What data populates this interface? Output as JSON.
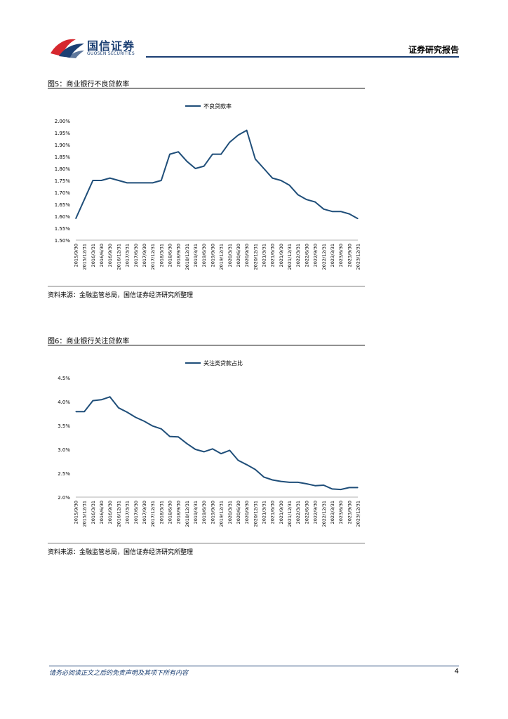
{
  "header": {
    "logo_cn": "国信证券",
    "logo_en": "GUOSEN SECURITIES",
    "report_type": "证券研究报告"
  },
  "brand_colors": {
    "primary": "#1b3f73",
    "logo_red": "#d6272e",
    "series": "#1f4e79"
  },
  "figures": [
    {
      "title": "图5：商业银行不良贷款率",
      "source": "资料来源：金融监管总局，国信证券经济研究所整理"
    },
    {
      "title": "图6：商业银行关注贷款率",
      "source": "资料来源：金融监管总局，国信证券经济研究所整理"
    }
  ],
  "chart_data": [
    {
      "type": "line",
      "categories": [
        "2015/9/30",
        "2015/12/31",
        "2016/3/31",
        "2016/6/30",
        "2016/9/30",
        "2016/12/31",
        "2017/3/31",
        "2017/6/30",
        "2017/9/30",
        "2017/12/31",
        "2018/3/31",
        "2018/6/30",
        "2018/9/30",
        "2018/12/31",
        "2019/3/31",
        "2019/6/30",
        "2019/9/30",
        "2019/12/31",
        "2020/3/31",
        "2020/6/30",
        "2020/9/30",
        "2020/12/31",
        "2021/3/31",
        "2021/6/30",
        "2021/9/30",
        "2021/12/31",
        "2022/3/31",
        "2022/6/30",
        "2022/9/30",
        "2022/12/31",
        "2023/3/31",
        "2023/6/30",
        "2023/9/30",
        "2023/12/31"
      ],
      "series": [
        {
          "name": "不良贷款率",
          "values": [
            1.59,
            1.67,
            1.75,
            1.75,
            1.76,
            1.75,
            1.74,
            1.74,
            1.74,
            1.74,
            1.75,
            1.86,
            1.87,
            1.83,
            1.8,
            1.81,
            1.86,
            1.86,
            1.91,
            1.94,
            1.96,
            1.84,
            1.8,
            1.76,
            1.75,
            1.73,
            1.69,
            1.67,
            1.66,
            1.63,
            1.62,
            1.62,
            1.61,
            1.59
          ]
        }
      ],
      "ylim": [
        1.5,
        2.0
      ],
      "yticks": [
        "1.50%",
        "1.55%",
        "1.60%",
        "1.65%",
        "1.70%",
        "1.75%",
        "1.80%",
        "1.85%",
        "1.90%",
        "1.95%",
        "2.00%"
      ],
      "legend": "top-center",
      "grid": false
    },
    {
      "type": "line",
      "categories": [
        "2015/9/30",
        "2015/12/31",
        "2016/3/31",
        "2016/6/30",
        "2016/9/30",
        "2016/12/31",
        "2017/3/31",
        "2017/6/30",
        "2017/9/30",
        "2017/12/31",
        "2018/3/31",
        "2018/6/30",
        "2018/9/30",
        "2018/12/31",
        "2019/3/31",
        "2019/6/30",
        "2019/9/30",
        "2019/12/31",
        "2020/3/31",
        "2020/6/30",
        "2020/9/30",
        "2020/12/31",
        "2021/3/31",
        "2021/6/30",
        "2021/9/30",
        "2021/12/31",
        "2022/3/31",
        "2022/6/30",
        "2022/9/30",
        "2022/12/31",
        "2023/3/31",
        "2023/6/30",
        "2023/9/30",
        "2023/12/31"
      ],
      "series": [
        {
          "name": "关注类贷款占比",
          "values": [
            3.79,
            3.79,
            4.02,
            4.04,
            4.1,
            3.87,
            3.78,
            3.67,
            3.59,
            3.49,
            3.43,
            3.27,
            3.26,
            3.12,
            3.0,
            2.95,
            3.01,
            2.91,
            2.98,
            2.77,
            2.68,
            2.58,
            2.42,
            2.36,
            2.33,
            2.31,
            2.31,
            2.28,
            2.24,
            2.25,
            2.17,
            2.16,
            2.2,
            2.2
          ]
        }
      ],
      "ylim": [
        2.0,
        4.5
      ],
      "yticks": [
        "2.0%",
        "2.5%",
        "3.0%",
        "3.5%",
        "4.0%",
        "4.5%"
      ],
      "legend": "top-center",
      "grid": false
    }
  ],
  "footer": {
    "disclaimer": "请务必阅读正文之后的免责声明及其项下所有内容",
    "page": "4"
  }
}
